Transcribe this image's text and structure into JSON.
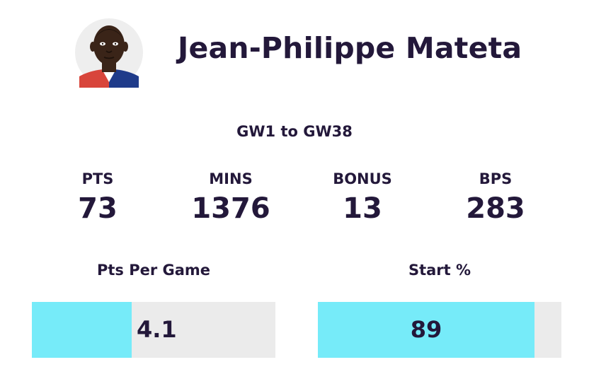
{
  "player": {
    "name": "Jean-Philippe Mateta",
    "avatar_icon": "player-avatar-icon"
  },
  "range_label": "GW1 to GW38",
  "stats": [
    {
      "label": "PTS",
      "value": "73"
    },
    {
      "label": "MINS",
      "value": "1376"
    },
    {
      "label": "BONUS",
      "value": "13"
    },
    {
      "label": "BPS",
      "value": "283"
    }
  ],
  "bars": {
    "pts_per_game": {
      "label": "Pts Per Game",
      "value": "4.1",
      "fill_fraction": 0.41
    },
    "start_pct": {
      "label": "Start %",
      "value": "89",
      "fill_fraction": 0.89
    }
  },
  "colors": {
    "text": "#23183a",
    "bar_fill": "#76ebf9",
    "bar_track": "#ebebeb"
  }
}
